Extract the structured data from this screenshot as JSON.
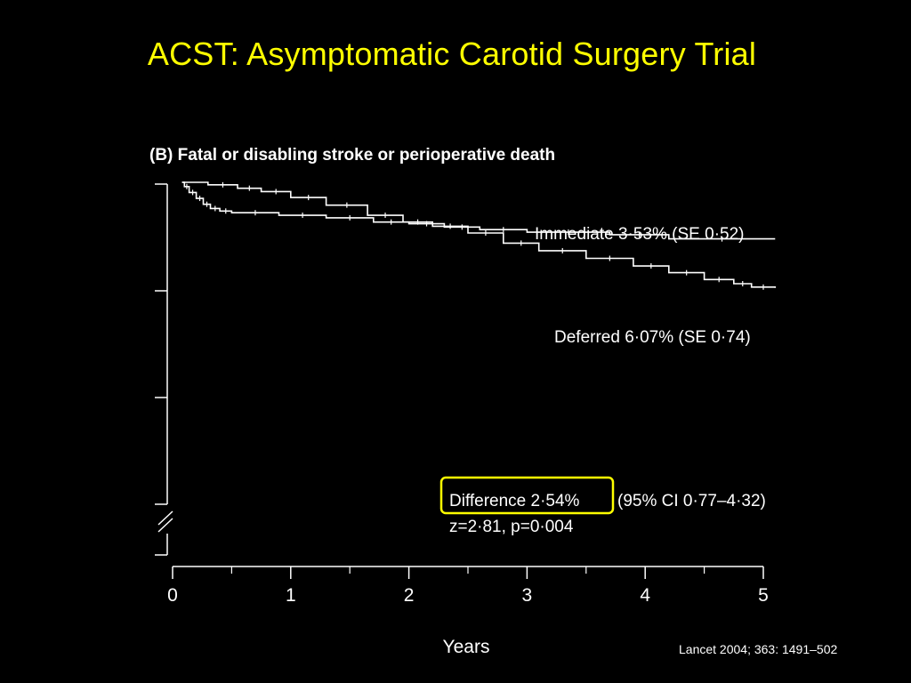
{
  "slide_title": "ACST: Asymptomatic Carotid Surgery Trial",
  "citation": "Lancet 2004; 363: 1491–502",
  "colors": {
    "background": "#000000",
    "title": "#ffff00",
    "lines": "#ffffff",
    "highlight": "#ffff00"
  },
  "chart_data": {
    "type": "line",
    "title": "(B) Fatal or disabling stroke or perioperative death",
    "xlabel": "Years",
    "ylabel": "",
    "xlim": [
      0,
      5
    ],
    "x_ticks": [
      "0",
      "1",
      "2",
      "3",
      "4",
      "5"
    ],
    "y_axis_ticks_unlabeled": 4,
    "y_axis_break": true,
    "grid": false,
    "series": [
      {
        "name": "Immediate 3·53% (SE 0·52)",
        "values": [
          [
            0.08,
            0.0
          ],
          [
            0.1,
            0.5
          ],
          [
            0.14,
            1.2
          ],
          [
            0.2,
            1.9
          ],
          [
            0.26,
            2.6
          ],
          [
            0.32,
            3.1
          ],
          [
            0.4,
            3.4
          ],
          [
            0.5,
            3.6
          ],
          [
            0.9,
            3.9
          ],
          [
            1.3,
            4.2
          ],
          [
            1.7,
            4.7
          ],
          [
            2.0,
            4.9
          ],
          [
            2.3,
            5.3
          ],
          [
            2.6,
            5.6
          ],
          [
            3.0,
            5.9
          ],
          [
            3.7,
            6.2
          ],
          [
            4.2,
            6.7
          ],
          [
            5.1,
            6.7
          ]
        ]
      },
      {
        "name": "Deferred 6·07% (SE 0·74)",
        "values": [
          [
            0.08,
            0.0
          ],
          [
            0.3,
            0.3
          ],
          [
            0.55,
            0.7
          ],
          [
            0.75,
            1.1
          ],
          [
            1.0,
            1.8
          ],
          [
            1.3,
            2.7
          ],
          [
            1.65,
            3.9
          ],
          [
            1.95,
            4.7
          ],
          [
            2.2,
            5.2
          ],
          [
            2.5,
            6.0
          ],
          [
            2.8,
            7.2
          ],
          [
            3.1,
            8.1
          ],
          [
            3.5,
            9.0
          ],
          [
            3.9,
            9.9
          ],
          [
            4.2,
            10.7
          ],
          [
            4.5,
            11.5
          ],
          [
            4.75,
            12.0
          ],
          [
            4.9,
            12.4
          ],
          [
            5.1,
            12.5
          ]
        ]
      }
    ],
    "annotations": {
      "immediate": "Immediate 3·53% (SE 0·52)",
      "deferred": "Deferred 6·07% (SE 0·74)",
      "difference": "Difference 2·54%",
      "ci": "(95% CI 0·77–4·32)",
      "stats": "z=2·81, p=0·004"
    }
  }
}
